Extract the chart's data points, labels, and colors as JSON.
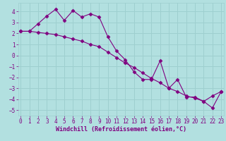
{
  "xlabel": "Windchill (Refroidissement éolien,°C)",
  "bg_color": "#b2e0e0",
  "grid_color": "#9ecfcf",
  "line_color": "#800080",
  "line1_x": [
    0,
    1,
    2,
    3,
    4,
    5,
    6,
    7,
    8,
    9,
    10,
    11,
    12,
    13,
    14,
    15,
    16,
    17,
    18,
    19,
    20,
    21,
    22,
    23
  ],
  "line1_y": [
    2.2,
    2.2,
    2.9,
    3.6,
    4.2,
    3.2,
    4.1,
    3.5,
    3.8,
    3.5,
    1.7,
    0.4,
    -0.4,
    -1.5,
    -2.2,
    -2.2,
    -0.5,
    -3.0,
    -2.2,
    -3.8,
    -3.8,
    -4.2,
    -3.7,
    -3.3
  ],
  "line2_x": [
    0,
    1,
    2,
    3,
    4,
    5,
    6,
    7,
    8,
    9,
    10,
    11,
    12,
    13,
    14,
    15,
    16,
    17,
    18,
    19,
    20,
    21,
    22,
    23
  ],
  "line2_y": [
    2.2,
    2.2,
    2.1,
    2.0,
    1.9,
    1.7,
    1.5,
    1.3,
    1.0,
    0.8,
    0.3,
    -0.2,
    -0.7,
    -1.1,
    -1.6,
    -2.1,
    -2.5,
    -3.0,
    -3.3,
    -3.7,
    -3.9,
    -4.2,
    -4.8,
    -3.3
  ],
  "marker": "D",
  "marker_size": 2.5,
  "xlim": [
    -0.3,
    23.3
  ],
  "ylim": [
    -5.5,
    4.8
  ],
  "xticks": [
    0,
    1,
    2,
    3,
    4,
    5,
    6,
    7,
    8,
    9,
    10,
    11,
    12,
    13,
    14,
    15,
    16,
    17,
    18,
    19,
    20,
    21,
    22,
    23
  ],
  "yticks": [
    -5,
    -4,
    -3,
    -2,
    -1,
    0,
    1,
    2,
    3,
    4
  ],
  "tick_fontsize": 5.5,
  "xlabel_fontsize": 6.0,
  "label_color": "#800080"
}
